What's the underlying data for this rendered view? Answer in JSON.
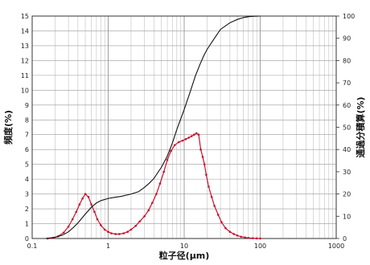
{
  "chart_data": {
    "type": "line",
    "title": "",
    "xlabel": "粒子径(μm)",
    "ylabel_left": "頻度(%)",
    "ylabel_right": "通過分積算(%)",
    "x_scale": "log",
    "xlim": [
      0.1,
      1000
    ],
    "ylim_left": [
      0,
      15
    ],
    "ylim_right": [
      0,
      100
    ],
    "grid": true,
    "x_ticks": [
      0.1,
      1,
      10,
      100,
      1000
    ],
    "x_tick_labels": [
      "0.1",
      "1",
      "10",
      "100",
      "1000"
    ],
    "y_left_ticks": [
      0,
      1,
      2,
      3,
      4,
      5,
      6,
      7,
      8,
      9,
      10,
      11,
      12,
      13,
      14,
      15
    ],
    "y_left_tick_labels": [
      "0",
      "1",
      "2",
      "3",
      "4",
      "5",
      "6",
      "7",
      "8",
      "9",
      "10",
      "11",
      "12",
      "13",
      "14",
      "15"
    ],
    "y_right_ticks": [
      0,
      10,
      20,
      30,
      40,
      50,
      60,
      70,
      80,
      90,
      100
    ],
    "y_right_tick_labels": [
      "0",
      "10",
      "20",
      "30",
      "40",
      "50",
      "60",
      "70",
      "80",
      "90",
      "100"
    ],
    "series": [
      {
        "axis": "left",
        "color": "#c8102e",
        "markers": true,
        "x": [
          0.16,
          0.19,
          0.22,
          0.26,
          0.3,
          0.34,
          0.38,
          0.42,
          0.46,
          0.5,
          0.55,
          0.6,
          0.66,
          0.72,
          0.8,
          0.9,
          1.0,
          1.1,
          1.25,
          1.4,
          1.6,
          1.8,
          2.0,
          2.3,
          2.6,
          3.0,
          3.4,
          3.8,
          4.3,
          4.8,
          5.4,
          6.0,
          6.7,
          7.5,
          8.5,
          9.5,
          10.5,
          11.5,
          12.5,
          13.5,
          14.5,
          15.5,
          16.5,
          17.5,
          18.5,
          19.5,
          21,
          23,
          25,
          28,
          31,
          35,
          40,
          45,
          50,
          56,
          63,
          70,
          80,
          90,
          100
        ],
        "y": [
          0.0,
          0.05,
          0.15,
          0.4,
          0.8,
          1.3,
          1.8,
          2.3,
          2.7,
          3.0,
          2.8,
          2.3,
          1.8,
          1.3,
          0.9,
          0.6,
          0.45,
          0.35,
          0.3,
          0.3,
          0.35,
          0.45,
          0.6,
          0.85,
          1.15,
          1.5,
          1.9,
          2.4,
          3.0,
          3.7,
          4.5,
          5.3,
          5.9,
          6.3,
          6.5,
          6.6,
          6.7,
          6.8,
          6.9,
          7.0,
          7.1,
          7.0,
          6.0,
          5.5,
          5.0,
          4.3,
          3.5,
          2.8,
          2.2,
          1.6,
          1.1,
          0.7,
          0.45,
          0.3,
          0.2,
          0.12,
          0.07,
          0.04,
          0.02,
          0.01,
          0.0
        ]
      },
      {
        "axis": "right",
        "color": "#111111",
        "markers": false,
        "x": [
          0.15,
          0.2,
          0.25,
          0.3,
          0.35,
          0.4,
          0.5,
          0.6,
          0.7,
          0.8,
          1.0,
          1.2,
          1.5,
          2.0,
          2.5,
          3.0,
          3.5,
          4.0,
          5.0,
          6.0,
          7.0,
          8.0,
          10,
          12,
          14,
          16,
          18,
          20,
          25,
          30,
          40,
          50,
          60,
          70,
          80,
          100
        ],
        "y": [
          0,
          0.5,
          1.5,
          3,
          5,
          7,
          11,
          14,
          16,
          17,
          18,
          18.5,
          19,
          20,
          21,
          23,
          25,
          27,
          32,
          37,
          43,
          49,
          58,
          66,
          73,
          78,
          82,
          85,
          90,
          94,
          97,
          98.5,
          99.3,
          99.7,
          99.9,
          100
        ]
      }
    ]
  }
}
